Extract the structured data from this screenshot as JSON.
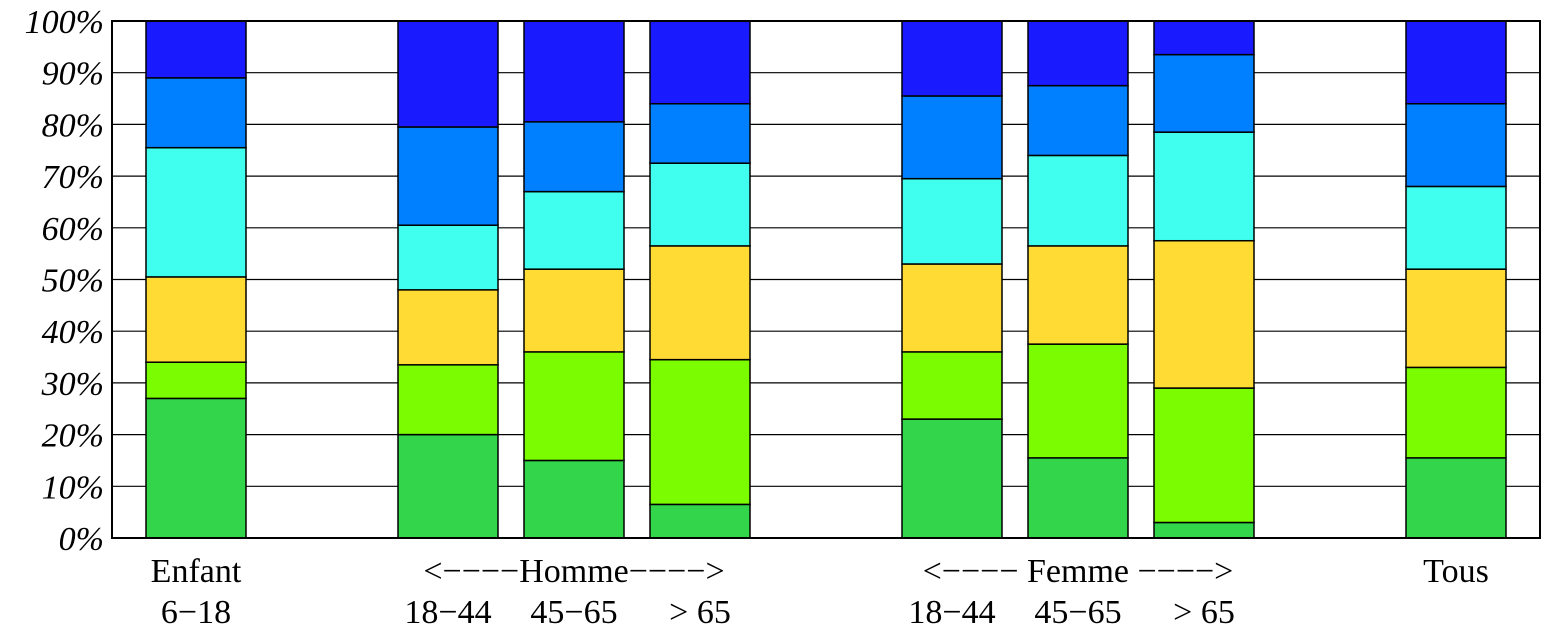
{
  "chart_data": {
    "type": "bar",
    "stacked": true,
    "ylim": [
      0,
      100
    ],
    "grid": true,
    "y_ticks": [
      "0%",
      "10%",
      "20%",
      "30%",
      "40%",
      "50%",
      "60%",
      "70%",
      "80%",
      "90%",
      "100%"
    ],
    "categories": [
      {
        "group": "Enfant",
        "label": "6−18"
      },
      {
        "group": "Homme",
        "label": "18−44"
      },
      {
        "group": "Homme",
        "label": "45−65"
      },
      {
        "group": "Homme",
        "label": "> 65"
      },
      {
        "group": "Femme",
        "label": "18−44"
      },
      {
        "group": "Femme",
        "label": "45−65"
      },
      {
        "group": "Femme",
        "label": "> 65"
      },
      {
        "group": "Tous",
        "label": ""
      }
    ],
    "group_labels": [
      {
        "text": "Enfant"
      },
      {
        "text": "<−−−−Homme−−−−>"
      },
      {
        "text": "<−−−− Femme −−−−>"
      },
      {
        "text": "Tous"
      }
    ],
    "series": [
      {
        "color": "#33d64a",
        "values": [
          27,
          20,
          15,
          6.5,
          23,
          15.5,
          3,
          15.5
        ]
      },
      {
        "color": "#7cfc00",
        "values": [
          7,
          13.5,
          21,
          28,
          13,
          22,
          26,
          17.5
        ]
      },
      {
        "color": "#ffdb33",
        "values": [
          16.5,
          14.5,
          16,
          22,
          17,
          19,
          28.5,
          19
        ]
      },
      {
        "color": "#40ffee",
        "values": [
          25,
          12.5,
          15,
          16,
          16.5,
          17.5,
          21,
          16
        ]
      },
      {
        "color": "#0080ff",
        "values": [
          13.5,
          19,
          13.5,
          11.5,
          16,
          13.5,
          15,
          16
        ]
      },
      {
        "color": "#1a1aff",
        "values": [
          11,
          20.5,
          19.5,
          16,
          14.5,
          12.5,
          6.5,
          16
        ]
      }
    ]
  }
}
